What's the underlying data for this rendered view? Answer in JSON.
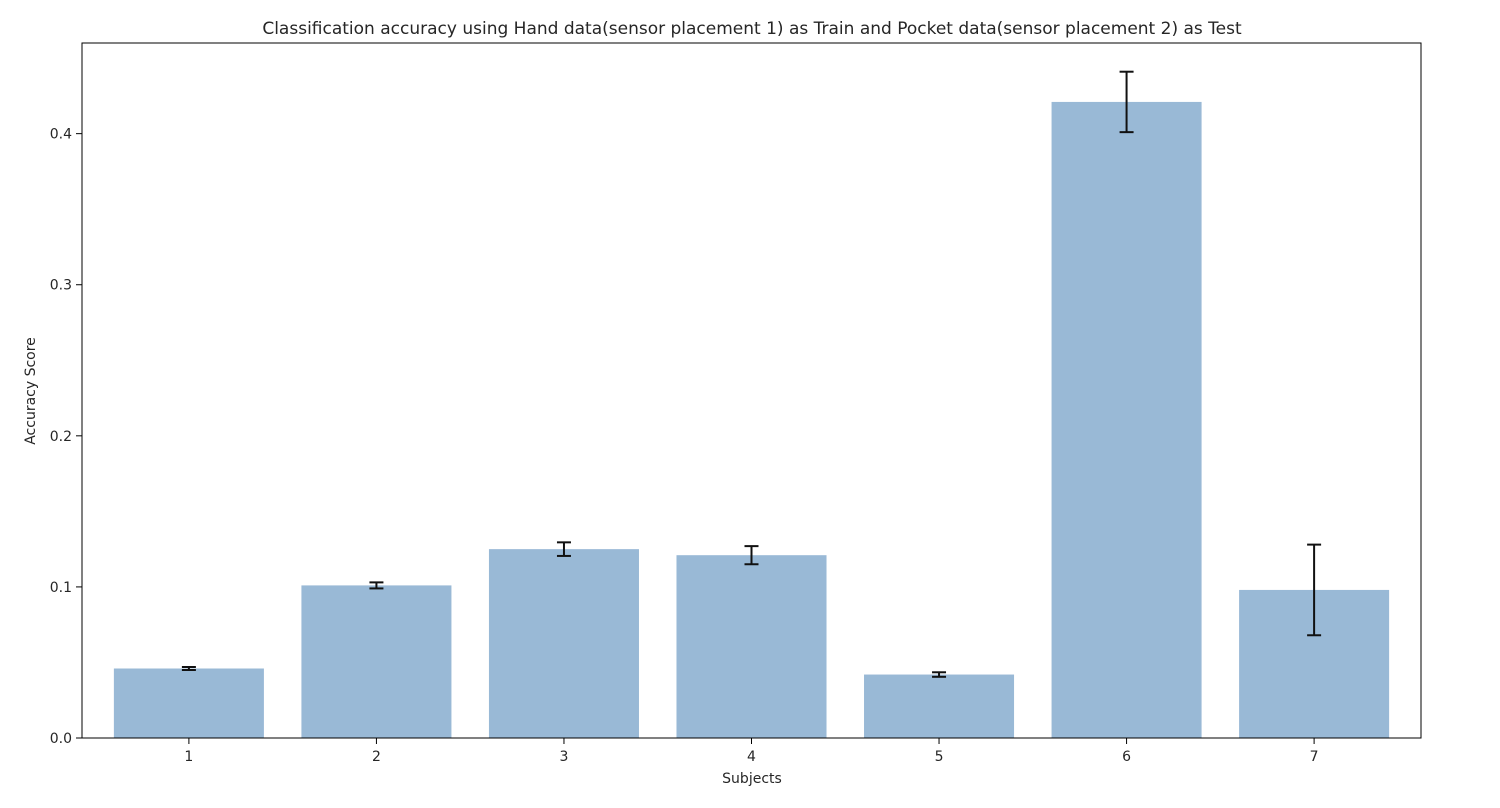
{
  "chart_data": {
    "type": "bar",
    "title": "Classification accuracy using Hand data(sensor placement 1) as Train and Pocket data(sensor placement 2) as Test",
    "xlabel": "Subjects",
    "ylabel": "Accuracy Score",
    "categories": [
      "1",
      "2",
      "3",
      "4",
      "5",
      "6",
      "7"
    ],
    "values": [
      0.046,
      0.101,
      0.125,
      0.121,
      0.042,
      0.421,
      0.098
    ],
    "errors": [
      0.001,
      0.002,
      0.0045,
      0.006,
      0.0015,
      0.02,
      0.03
    ],
    "ylim": [
      0,
      0.46
    ],
    "yticks": [
      0.0,
      0.1,
      0.2,
      0.3,
      0.4
    ],
    "ytick_labels": [
      "0.0",
      "0.1",
      "0.2",
      "0.3",
      "0.4"
    ],
    "bar_color": "#99b9d6",
    "error_color": "#111111",
    "grid": false,
    "legend": false
  }
}
